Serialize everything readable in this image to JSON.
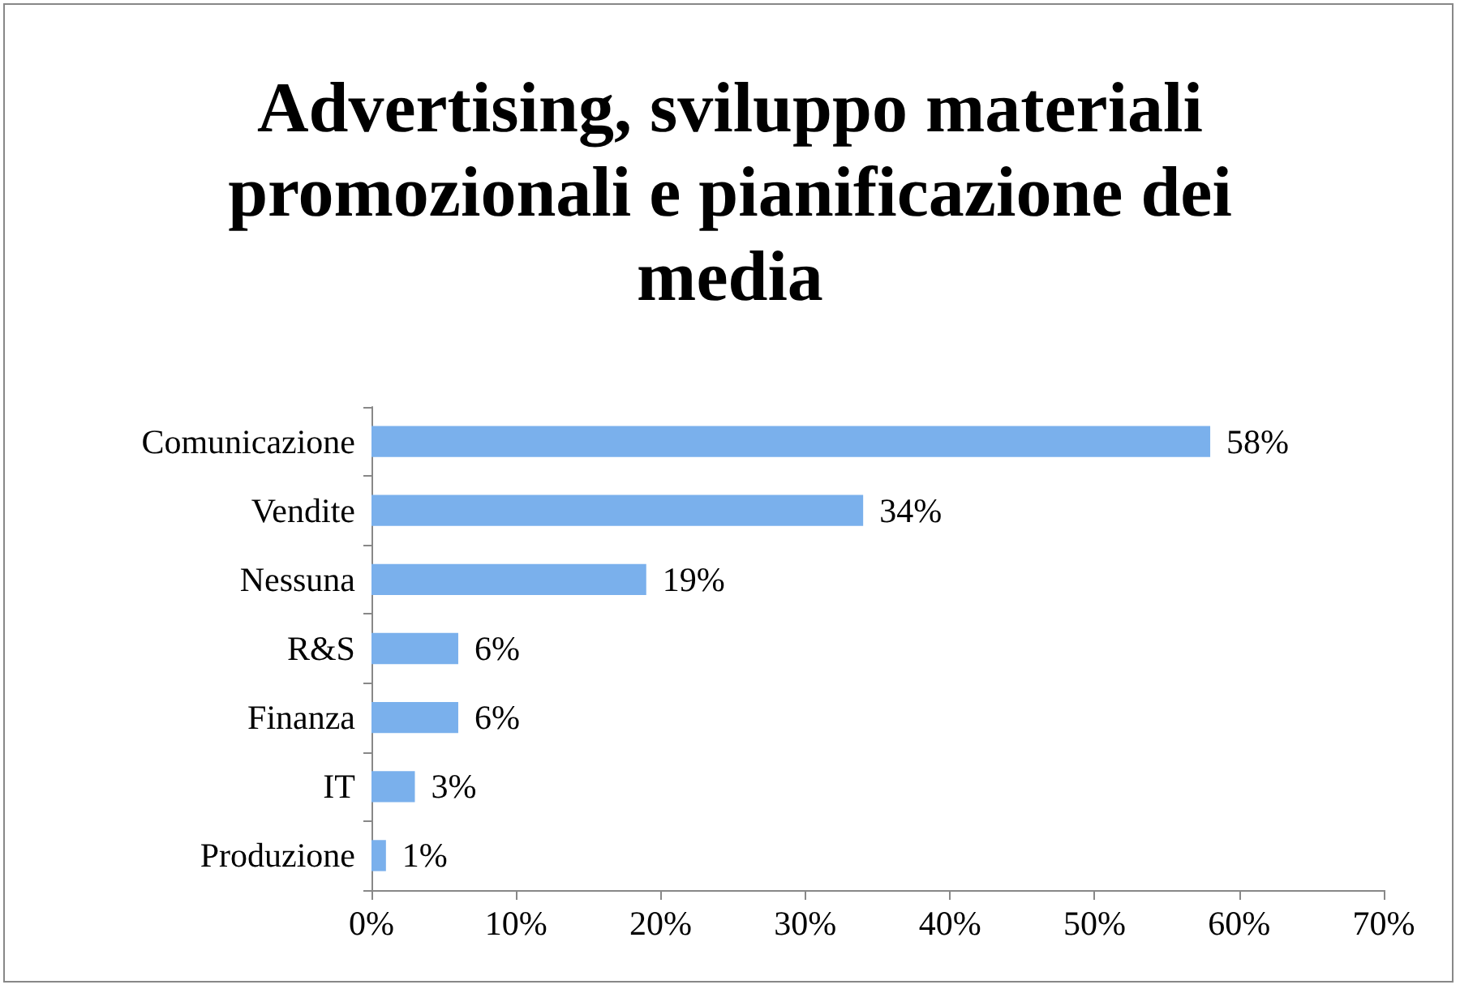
{
  "chart_data": {
    "type": "bar",
    "orientation": "horizontal",
    "title": "Advertising, sviluppo materiali promozionali e pianificazione dei media",
    "categories": [
      "Comunicazione",
      "Vendite",
      "Nessuna",
      "R&S",
      "Finanza",
      "IT",
      "Produzione"
    ],
    "values": [
      58,
      34,
      19,
      6,
      6,
      3,
      1
    ],
    "value_labels": [
      "58%",
      "34%",
      "19%",
      "6%",
      "6%",
      "3%",
      "1%"
    ],
    "color": "#7ab0ec",
    "xlim": [
      0,
      70
    ],
    "xticks": [
      {
        "value": 0,
        "label": "0%"
      },
      {
        "value": 10,
        "label": "10%"
      },
      {
        "value": 20,
        "label": "20%"
      },
      {
        "value": 30,
        "label": "30%"
      },
      {
        "value": 40,
        "label": "40%"
      },
      {
        "value": 50,
        "label": "50%"
      },
      {
        "value": 60,
        "label": "60%"
      },
      {
        "value": 70,
        "label": "70%"
      }
    ],
    "grid": false
  }
}
